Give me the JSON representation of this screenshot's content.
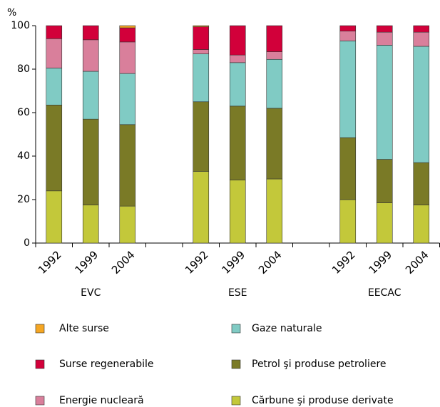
{
  "chart_data": {
    "type": "stacked-bar",
    "y_label": "%",
    "categories": [
      "1992",
      "1999",
      "2004",
      null,
      "1992",
      "1999",
      "2004",
      null,
      "1992",
      "1999",
      "2004"
    ],
    "groups": [
      "EVC",
      "ESE",
      "EECAC"
    ],
    "series": [
      {
        "name": "Cărbune şi produse derivate",
        "color": "#c3c83a",
        "values": [
          24,
          17.5,
          17,
          null,
          33,
          29,
          29.5,
          null,
          20,
          18.5,
          17.5
        ]
      },
      {
        "name": "Petrol şi produse petroliere",
        "color": "#7a7a26",
        "values": [
          39.5,
          39.5,
          37.5,
          null,
          32,
          34,
          32.5,
          null,
          28.5,
          20,
          19.5
        ]
      },
      {
        "name": "Gaze naturale",
        "color": "#80cbc4",
        "values": [
          17,
          22,
          23.5,
          null,
          22,
          20,
          22.5,
          null,
          44.5,
          52.5,
          53.5
        ]
      },
      {
        "name": "Energie nucleară",
        "color": "#d97f9b",
        "values": [
          13.5,
          14.5,
          14.5,
          null,
          2,
          3.5,
          3.5,
          null,
          4.5,
          6,
          6.5
        ]
      },
      {
        "name": "Surse regenerabile",
        "color": "#d2003a",
        "values": [
          6,
          6.5,
          6.5,
          null,
          10.5,
          13.5,
          12,
          null,
          2.5,
          3,
          3
        ]
      },
      {
        "name": "Alte surse",
        "color": "#f5a623",
        "values": [
          0,
          0,
          1,
          null,
          0.5,
          0,
          0,
          null,
          0,
          0,
          0
        ]
      }
    ],
    "ylim": [
      0,
      100
    ],
    "yticks": [
      0,
      20,
      40,
      60,
      80,
      100
    ]
  }
}
